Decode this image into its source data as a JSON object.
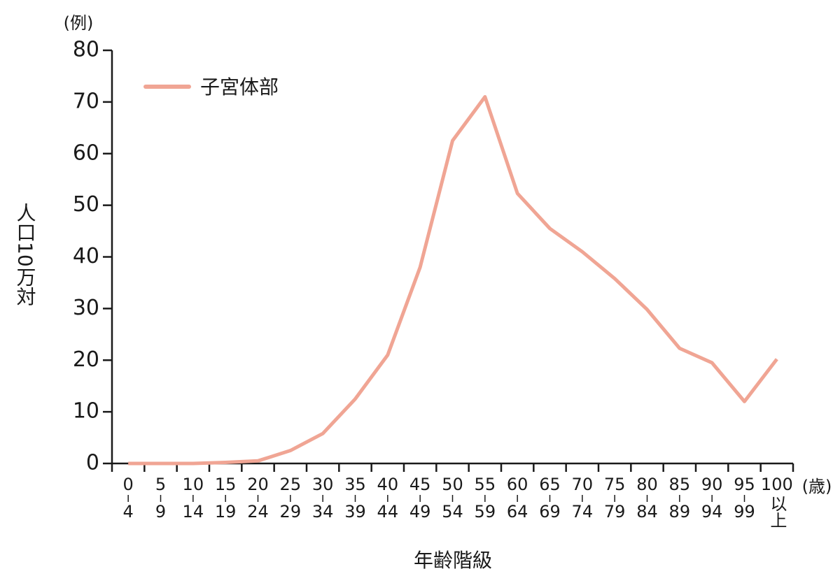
{
  "chart_data": {
    "type": "line",
    "y_unit": "(例)",
    "x_unit": "(歳)",
    "y_label": "人口10万対",
    "x_label": "年齢階級",
    "categories": [
      [
        "0",
        "4"
      ],
      [
        "5",
        "9"
      ],
      [
        "10",
        "14"
      ],
      [
        "15",
        "19"
      ],
      [
        "20",
        "24"
      ],
      [
        "25",
        "29"
      ],
      [
        "30",
        "34"
      ],
      [
        "35",
        "39"
      ],
      [
        "40",
        "44"
      ],
      [
        "45",
        "49"
      ],
      [
        "50",
        "54"
      ],
      [
        "55",
        "59"
      ],
      [
        "60",
        "64"
      ],
      [
        "65",
        "69"
      ],
      [
        "70",
        "74"
      ],
      [
        "75",
        "79"
      ],
      [
        "80",
        "84"
      ],
      [
        "85",
        "89"
      ],
      [
        "90",
        "94"
      ],
      [
        "95",
        "99"
      ],
      [
        "100",
        "以上"
      ]
    ],
    "series": [
      {
        "name": "子宮体部",
        "color": "#f0a594",
        "values": [
          0,
          0,
          0,
          0.2,
          0.5,
          2.5,
          5.8,
          12.5,
          21,
          38,
          62.5,
          71,
          52.3,
          45.5,
          41,
          35.8,
          29.8,
          22.3,
          19.5,
          12,
          20.2
        ]
      }
    ],
    "ylim": [
      0,
      80
    ],
    "yticks": [
      0,
      10,
      20,
      30,
      40,
      50,
      60,
      70,
      80
    ]
  }
}
